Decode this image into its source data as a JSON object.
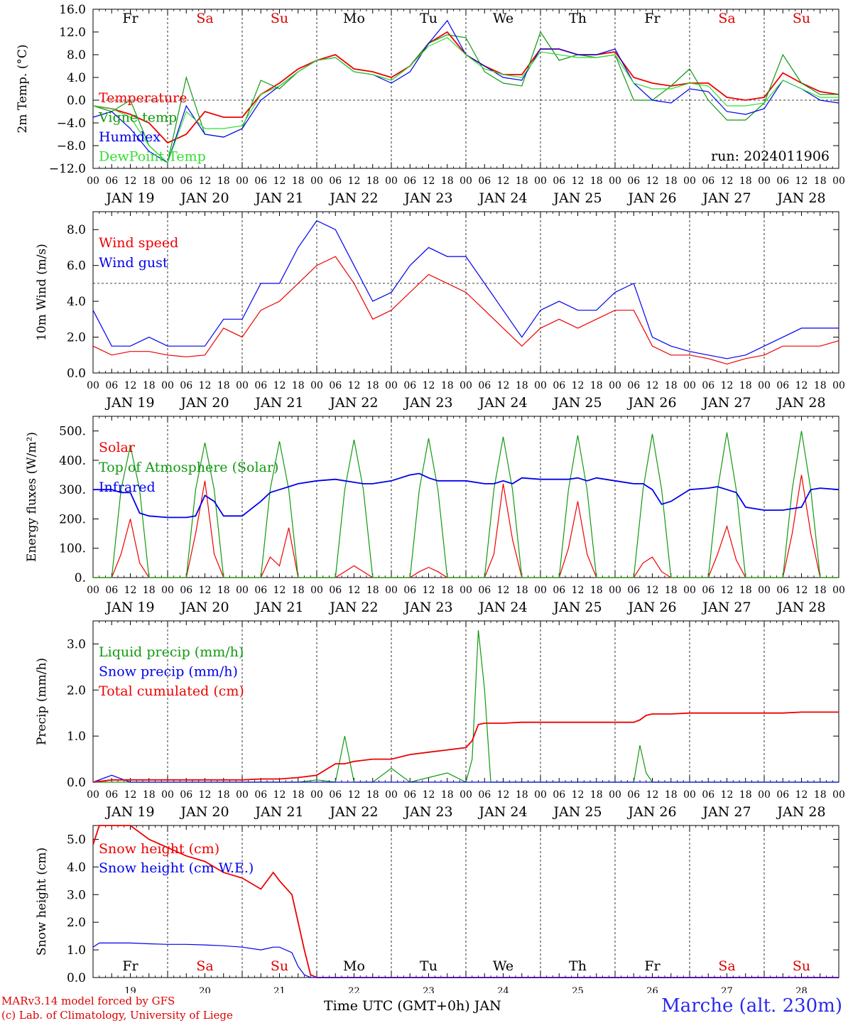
{
  "run_label": "run: 2024011906",
  "footer": {
    "model": "MARv3.14 model forced by GFS",
    "lab": "(c) Lab. of Climatology, University of Liege",
    "station": "Marche (alt. 230m)",
    "xaxis_label": "Time UTC (GMT+0h) JAN"
  },
  "days": [
    {
      "abbr": "Fr",
      "date": "JAN 19",
      "num": "19",
      "weekend": false
    },
    {
      "abbr": "Sa",
      "date": "JAN 20",
      "num": "20",
      "weekend": true
    },
    {
      "abbr": "Su",
      "date": "JAN 21",
      "num": "21",
      "weekend": true
    },
    {
      "abbr": "Mo",
      "date": "JAN 22",
      "num": "22",
      "weekend": false
    },
    {
      "abbr": "Tu",
      "date": "JAN 23",
      "num": "23",
      "weekend": false
    },
    {
      "abbr": "We",
      "date": "JAN 24",
      "num": "24",
      "weekend": false
    },
    {
      "abbr": "Th",
      "date": "JAN 25",
      "num": "25",
      "weekend": false
    },
    {
      "abbr": "Fr",
      "date": "JAN 26",
      "num": "26",
      "weekend": false
    },
    {
      "abbr": "Sa",
      "date": "JAN 27",
      "num": "27",
      "weekend": true
    },
    {
      "abbr": "Su",
      "date": "JAN 28",
      "num": "28",
      "weekend": true
    }
  ],
  "hour_ticks": [
    "00",
    "06",
    "12",
    "18"
  ],
  "colors": {
    "weekday": "#000000",
    "weekend": "#dd0000",
    "red": "#ee0000",
    "green": "#119911",
    "blue": "#0000ee",
    "lightgreen": "#33dd33"
  },
  "chart_data": [
    {
      "type": "line",
      "ylabel": "2m Temp. (°C)",
      "ylim": [
        -12,
        16
      ],
      "yticks": [
        "−12.0",
        "−8.0",
        "−4.0",
        "0.0",
        "4.0",
        "8.0",
        "12.0",
        "16.0"
      ],
      "refline": 0,
      "x_hours": [
        0,
        6,
        12,
        18,
        24,
        30,
        36,
        42,
        48,
        54,
        60,
        66,
        72,
        78,
        84,
        90,
        96,
        102,
        108,
        114,
        120,
        126,
        132,
        138,
        144,
        150,
        156,
        162,
        168,
        174,
        180,
        186,
        192,
        198,
        204,
        210,
        216,
        222,
        228,
        234,
        240
      ],
      "series": [
        {
          "name": "Temperature",
          "color": "red",
          "values": [
            -1,
            -1.5,
            -2.5,
            -4,
            -7.5,
            -6,
            -2,
            -3,
            -3,
            1,
            3,
            5.5,
            7,
            8,
            5.5,
            5,
            4,
            6,
            10,
            12,
            8,
            6,
            4.5,
            4.5,
            9,
            9,
            8,
            8,
            8.5,
            4,
            3,
            2.5,
            3,
            3,
            0.5,
            0,
            0.5,
            4.8,
            3,
            1.5,
            1
          ]
        },
        {
          "name": "Vigne temp",
          "color": "green",
          "values": [
            -1,
            -2,
            0,
            -8,
            -11,
            4,
            -6,
            -6.5,
            -5,
            3.5,
            2,
            5,
            7,
            7.5,
            5,
            4.5,
            3.5,
            6,
            10,
            11.5,
            11,
            5,
            3,
            2.5,
            12,
            7,
            8,
            7.5,
            8,
            0,
            0,
            2.5,
            5.5,
            0,
            -3.5,
            -3.5,
            -0.5,
            8,
            3,
            1,
            1
          ]
        },
        {
          "name": "Humidex",
          "color": "blue",
          "values": [
            -3,
            -2,
            -5,
            -9,
            -11,
            -1,
            -6,
            -6.5,
            -5,
            0,
            2.5,
            5,
            7,
            7.5,
            5,
            4.5,
            3,
            5,
            10,
            14,
            8,
            6,
            4,
            3.5,
            9,
            9,
            8,
            8,
            9,
            3,
            0,
            -0.5,
            2,
            1.5,
            -2,
            -2.5,
            -1.5,
            3.5,
            2,
            0,
            -0.5
          ]
        },
        {
          "name": "DewPoint Temp",
          "color": "lightgreen",
          "values": [
            -1,
            -1.5,
            -3,
            -8,
            -11,
            -2,
            -5,
            -5,
            -4.5,
            1,
            2.5,
            5,
            7,
            7.5,
            5,
            4.5,
            3.5,
            6,
            9.5,
            11,
            8,
            5.5,
            4.5,
            4,
            8.5,
            8,
            7.5,
            7.5,
            8,
            3,
            2,
            2,
            3,
            2.5,
            -1,
            -1,
            -0.5,
            3.5,
            2,
            0.5,
            0.5
          ]
        }
      ]
    },
    {
      "type": "line",
      "ylabel": "10m Wind (m/s)",
      "ylim": [
        0,
        9
      ],
      "yticks": [
        "0.0",
        "2.0",
        "4.0",
        "6.0",
        "8.0"
      ],
      "refline": 5,
      "x_hours": [
        0,
        6,
        12,
        18,
        24,
        30,
        36,
        42,
        48,
        54,
        60,
        66,
        72,
        78,
        84,
        90,
        96,
        102,
        108,
        114,
        120,
        126,
        132,
        138,
        144,
        150,
        156,
        162,
        168,
        174,
        180,
        186,
        192,
        198,
        204,
        210,
        216,
        222,
        228,
        234,
        240
      ],
      "series": [
        {
          "name": "Wind speed",
          "color": "red",
          "values": [
            1.5,
            1,
            1.2,
            1.2,
            1,
            0.9,
            1,
            2.5,
            2,
            3.5,
            4,
            5,
            6,
            6.5,
            5,
            3,
            3.5,
            4.5,
            5.5,
            5,
            4.5,
            3.5,
            2.5,
            1.5,
            2.5,
            3,
            2.5,
            3,
            3.5,
            3.5,
            1.5,
            1,
            1,
            0.8,
            0.5,
            0.8,
            1,
            1.5,
            1.5,
            1.5,
            1.8
          ]
        },
        {
          "name": "Wind gust",
          "color": "blue",
          "values": [
            3.5,
            1.5,
            1.5,
            2,
            1.5,
            1.5,
            1.5,
            3,
            3,
            5,
            5,
            7,
            8.5,
            8,
            6,
            4,
            4.5,
            6,
            7,
            6.5,
            6.5,
            5,
            3.5,
            2,
            3.5,
            4,
            3.5,
            3.5,
            4.5,
            5,
            2,
            1.5,
            1.2,
            1,
            0.8,
            1,
            1.5,
            2,
            2.5,
            2.5,
            2.5
          ]
        }
      ]
    },
    {
      "type": "line",
      "ylabel": "Energy fluxes (W/m²)",
      "ylim": [
        0,
        550
      ],
      "yticks": [
        "0.",
        "100.",
        "200.",
        "300.",
        "400.",
        "500."
      ],
      "x_hours": [
        0,
        6,
        9,
        12,
        15,
        18,
        24,
        30,
        33,
        36,
        39,
        42,
        48,
        54,
        57,
        60,
        63,
        66,
        72,
        78,
        81,
        84,
        87,
        90,
        96,
        102,
        105,
        108,
        111,
        114,
        120,
        126,
        129,
        132,
        135,
        138,
        144,
        150,
        153,
        156,
        159,
        162,
        168,
        174,
        177,
        180,
        183,
        186,
        192,
        198,
        201,
        204,
        207,
        210,
        216,
        222,
        225,
        228,
        231,
        234,
        240
      ],
      "series": [
        {
          "name": "Solar",
          "color": "red",
          "values": [
            0,
            0,
            80,
            200,
            50,
            0,
            0,
            0,
            150,
            330,
            80,
            0,
            0,
            0,
            70,
            40,
            170,
            0,
            0,
            0,
            20,
            40,
            20,
            0,
            0,
            0,
            20,
            35,
            20,
            0,
            0,
            0,
            80,
            320,
            130,
            0,
            0,
            0,
            100,
            260,
            80,
            0,
            0,
            0,
            50,
            70,
            20,
            0,
            0,
            0,
            80,
            175,
            60,
            0,
            0,
            0,
            150,
            350,
            150,
            0,
            0
          ]
        },
        {
          "name": "Top of Atmosphere (Solar)",
          "color": "green",
          "values": [
            0,
            0,
            300,
            450,
            300,
            0,
            0,
            0,
            300,
            460,
            300,
            0,
            0,
            0,
            300,
            465,
            300,
            0,
            0,
            0,
            300,
            470,
            300,
            0,
            0,
            0,
            300,
            475,
            300,
            0,
            0,
            0,
            300,
            480,
            300,
            0,
            0,
            0,
            300,
            485,
            300,
            0,
            0,
            0,
            300,
            490,
            300,
            0,
            0,
            0,
            300,
            495,
            300,
            0,
            0,
            0,
            300,
            500,
            300,
            0,
            0
          ]
        },
        {
          "name": "Infrared",
          "color": "blue",
          "values": [
            300,
            300,
            290,
            290,
            220,
            210,
            205,
            205,
            210,
            280,
            260,
            210,
            210,
            260,
            290,
            300,
            310,
            320,
            330,
            335,
            330,
            325,
            320,
            320,
            330,
            350,
            355,
            340,
            330,
            330,
            330,
            320,
            320,
            330,
            320,
            340,
            335,
            335,
            335,
            340,
            330,
            340,
            330,
            320,
            320,
            300,
            250,
            260,
            300,
            305,
            310,
            300,
            290,
            240,
            230,
            230,
            235,
            240,
            300,
            305,
            300
          ]
        }
      ]
    },
    {
      "type": "line",
      "ylabel": "Precip (mm/h)",
      "ylim": [
        0,
        3.5
      ],
      "yticks": [
        "0.0",
        "1.0",
        "2.0",
        "3.0"
      ],
      "x_hours": [
        0,
        6,
        12,
        18,
        24,
        30,
        36,
        42,
        48,
        54,
        60,
        66,
        72,
        78,
        81,
        84,
        90,
        96,
        102,
        108,
        114,
        120,
        122,
        124,
        126,
        128,
        132,
        138,
        144,
        150,
        156,
        162,
        168,
        174,
        176,
        178,
        180,
        186,
        192,
        198,
        204,
        210,
        216,
        222,
        228,
        234,
        240
      ],
      "series": [
        {
          "name": "Liquid precip (mm/h)",
          "color": "green",
          "values": [
            0,
            0,
            0,
            0,
            0,
            0,
            0,
            0,
            0,
            0,
            0,
            0,
            0.05,
            0,
            1,
            0,
            0,
            0.3,
            0,
            0.1,
            0.2,
            0,
            0.5,
            3.3,
            2,
            0,
            0,
            0,
            0,
            0,
            0,
            0,
            0,
            0,
            0.8,
            0.2,
            0,
            0,
            0,
            0,
            0,
            0,
            0,
            0,
            0,
            0,
            0
          ]
        },
        {
          "name": "Snow precip (mm/h)",
          "color": "blue",
          "values": [
            0,
            0.15,
            0,
            0,
            0,
            0,
            0,
            0,
            0,
            0,
            0,
            0,
            0,
            0,
            0,
            0,
            0,
            0,
            0,
            0,
            0,
            0,
            0,
            0,
            0,
            0,
            0,
            0,
            0,
            0,
            0,
            0,
            0,
            0,
            0,
            0,
            0,
            0,
            0,
            0,
            0,
            0,
            0,
            0,
            0,
            0,
            0
          ]
        },
        {
          "name": "Total cumulated (cm)",
          "color": "red",
          "values": [
            0,
            0.05,
            0.05,
            0.05,
            0.05,
            0.05,
            0.05,
            0.05,
            0.05,
            0.07,
            0.07,
            0.1,
            0.15,
            0.4,
            0.4,
            0.45,
            0.5,
            0.5,
            0.6,
            0.65,
            0.7,
            0.75,
            0.9,
            1.25,
            1.28,
            1.28,
            1.28,
            1.3,
            1.3,
            1.3,
            1.3,
            1.3,
            1.3,
            1.3,
            1.35,
            1.45,
            1.48,
            1.48,
            1.5,
            1.5,
            1.5,
            1.5,
            1.5,
            1.5,
            1.52,
            1.52,
            1.52
          ]
        }
      ]
    },
    {
      "type": "line",
      "ylabel": "Snow height (cm)",
      "ylim": [
        0,
        5.5
      ],
      "yticks": [
        "0.0",
        "1.0",
        "2.0",
        "3.0",
        "4.0",
        "5.0"
      ],
      "x_hours": [
        0,
        2,
        12,
        18,
        24,
        30,
        36,
        42,
        48,
        54,
        58,
        60,
        64,
        66,
        68,
        70,
        72,
        84,
        120,
        180,
        240
      ],
      "series": [
        {
          "name": "Snow height (cm)",
          "color": "red",
          "values": [
            4.8,
            5.5,
            5.5,
            5.0,
            4.7,
            4.4,
            4.2,
            3.8,
            3.6,
            3.2,
            3.8,
            3.5,
            3.0,
            2.0,
            1.0,
            0.1,
            0,
            0,
            0,
            0,
            0
          ]
        },
        {
          "name": "Snow height (cm W.E.)",
          "color": "blue",
          "values": [
            1.1,
            1.25,
            1.25,
            1.22,
            1.2,
            1.2,
            1.18,
            1.15,
            1.1,
            1.0,
            1.1,
            1.1,
            0.9,
            0.4,
            0.1,
            0,
            0,
            0,
            0,
            0,
            0
          ]
        }
      ]
    }
  ]
}
